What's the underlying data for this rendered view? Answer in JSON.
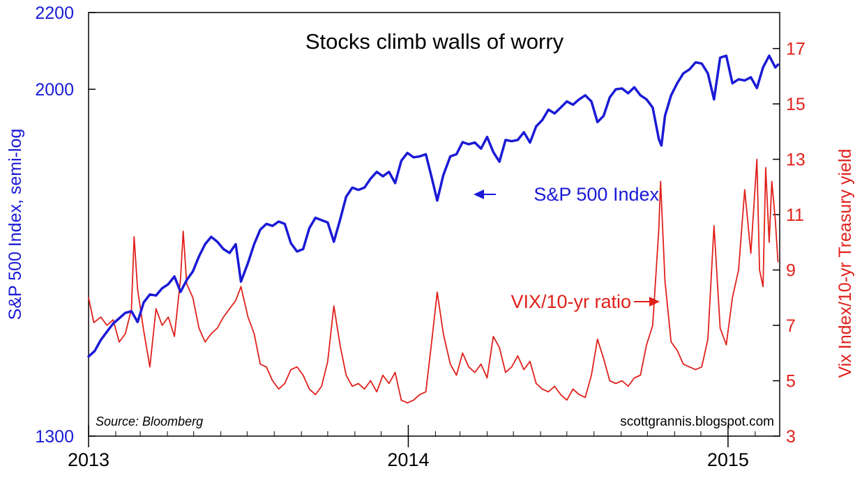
{
  "chart_data": {
    "type": "line",
    "title": "Stocks climb walls of worry",
    "source": "Source: Bloomberg",
    "credit": "scottgrannis.blogspot.com",
    "x_ticks": [
      "2013",
      "2014",
      "2015"
    ],
    "xlim": [
      "2013-01-01",
      "2015-03-01"
    ],
    "left_axis": {
      "label": "S&P 500 Index, semi-log",
      "scale": "log",
      "ylim": [
        1300,
        2200
      ],
      "ticks": [
        "2200",
        "2000",
        "1300"
      ]
    },
    "right_axis": {
      "label": "Vix Index/10-yr Treasury yield",
      "scale": "linear",
      "ylim": [
        3,
        18.3
      ],
      "ticks": [
        "17",
        "15",
        "13",
        "11",
        "9",
        "7",
        "5",
        "3"
      ]
    },
    "annotations": {
      "sp500": "S&P 500 Index",
      "vix": "VIX/10-yr ratio"
    },
    "grid": false,
    "colors": {
      "sp500": "#1a1ad6",
      "vix": "#e0201b"
    },
    "series": [
      {
        "name": "S&P 500 Index",
        "axis": "left",
        "color": "#1a1ad6",
        "points": [
          [
            "2013-01-01",
            1435
          ],
          [
            "2013-01-08",
            1445
          ],
          [
            "2013-01-15",
            1465
          ],
          [
            "2013-01-22",
            1480
          ],
          [
            "2013-01-29",
            1495
          ],
          [
            "2013-02-05",
            1505
          ],
          [
            "2013-02-12",
            1515
          ],
          [
            "2013-02-19",
            1518
          ],
          [
            "2013-02-26",
            1498
          ],
          [
            "2013-03-05",
            1535
          ],
          [
            "2013-03-12",
            1550
          ],
          [
            "2013-03-19",
            1548
          ],
          [
            "2013-03-26",
            1562
          ],
          [
            "2013-04-02",
            1570
          ],
          [
            "2013-04-09",
            1585
          ],
          [
            "2013-04-16",
            1555
          ],
          [
            "2013-04-23",
            1578
          ],
          [
            "2013-04-30",
            1595
          ],
          [
            "2013-05-07",
            1625
          ],
          [
            "2013-05-14",
            1650
          ],
          [
            "2013-05-21",
            1665
          ],
          [
            "2013-05-28",
            1655
          ],
          [
            "2013-06-04",
            1640
          ],
          [
            "2013-06-11",
            1632
          ],
          [
            "2013-06-18",
            1650
          ],
          [
            "2013-06-24",
            1575
          ],
          [
            "2013-07-02",
            1612
          ],
          [
            "2013-07-09",
            1650
          ],
          [
            "2013-07-16",
            1680
          ],
          [
            "2013-07-23",
            1692
          ],
          [
            "2013-07-30",
            1688
          ],
          [
            "2013-08-06",
            1697
          ],
          [
            "2013-08-13",
            1692
          ],
          [
            "2013-08-20",
            1652
          ],
          [
            "2013-08-27",
            1635
          ],
          [
            "2013-09-03",
            1640
          ],
          [
            "2013-09-10",
            1683
          ],
          [
            "2013-09-17",
            1705
          ],
          [
            "2013-09-24",
            1700
          ],
          [
            "2013-10-01",
            1695
          ],
          [
            "2013-10-08",
            1655
          ],
          [
            "2013-10-15",
            1700
          ],
          [
            "2013-10-22",
            1750
          ],
          [
            "2013-10-29",
            1770
          ],
          [
            "2013-11-05",
            1765
          ],
          [
            "2013-11-12",
            1770
          ],
          [
            "2013-11-19",
            1790
          ],
          [
            "2013-11-26",
            1805
          ],
          [
            "2013-12-03",
            1795
          ],
          [
            "2013-12-10",
            1805
          ],
          [
            "2013-12-17",
            1780
          ],
          [
            "2013-12-24",
            1830
          ],
          [
            "2013-12-31",
            1848
          ],
          [
            "2014-01-07",
            1838
          ],
          [
            "2014-01-14",
            1840
          ],
          [
            "2014-01-21",
            1845
          ],
          [
            "2014-01-28",
            1790
          ],
          [
            "2014-02-03",
            1742
          ],
          [
            "2014-02-10",
            1798
          ],
          [
            "2014-02-18",
            1840
          ],
          [
            "2014-02-25",
            1845
          ],
          [
            "2014-03-04",
            1873
          ],
          [
            "2014-03-11",
            1868
          ],
          [
            "2014-03-18",
            1872
          ],
          [
            "2014-03-25",
            1858
          ],
          [
            "2014-04-01",
            1885
          ],
          [
            "2014-04-08",
            1850
          ],
          [
            "2014-04-15",
            1828
          ],
          [
            "2014-04-22",
            1878
          ],
          [
            "2014-04-29",
            1875
          ],
          [
            "2014-05-06",
            1878
          ],
          [
            "2014-05-13",
            1896
          ],
          [
            "2014-05-20",
            1872
          ],
          [
            "2014-05-27",
            1910
          ],
          [
            "2014-06-03",
            1925
          ],
          [
            "2014-06-10",
            1950
          ],
          [
            "2014-06-17",
            1941
          ],
          [
            "2014-06-24",
            1955
          ],
          [
            "2014-07-01",
            1970
          ],
          [
            "2014-07-08",
            1962
          ],
          [
            "2014-07-15",
            1975
          ],
          [
            "2014-07-22",
            1985
          ],
          [
            "2014-07-29",
            1970
          ],
          [
            "2014-08-05",
            1920
          ],
          [
            "2014-08-12",
            1935
          ],
          [
            "2014-08-19",
            1980
          ],
          [
            "2014-08-26",
            2000
          ],
          [
            "2014-09-02",
            2002
          ],
          [
            "2014-09-09",
            1990
          ],
          [
            "2014-09-16",
            2005
          ],
          [
            "2014-09-23",
            1985
          ],
          [
            "2014-09-30",
            1975
          ],
          [
            "2014-10-07",
            1955
          ],
          [
            "2014-10-14",
            1880
          ],
          [
            "2014-10-17",
            1865
          ],
          [
            "2014-10-21",
            1935
          ],
          [
            "2014-10-28",
            1985
          ],
          [
            "2014-11-04",
            2015
          ],
          [
            "2014-11-11",
            2040
          ],
          [
            "2014-11-18",
            2050
          ],
          [
            "2014-11-25",
            2068
          ],
          [
            "2014-12-02",
            2065
          ],
          [
            "2014-12-09",
            2040
          ],
          [
            "2014-12-16",
            1975
          ],
          [
            "2014-12-23",
            2080
          ],
          [
            "2014-12-30",
            2085
          ],
          [
            "2015-01-06",
            2015
          ],
          [
            "2015-01-13",
            2025
          ],
          [
            "2015-01-20",
            2022
          ],
          [
            "2015-01-27",
            2030
          ],
          [
            "2015-02-03",
            2003
          ],
          [
            "2015-02-10",
            2055
          ],
          [
            "2015-02-17",
            2085
          ],
          [
            "2015-02-24",
            2055
          ],
          [
            "2015-02-27",
            2062
          ]
        ]
      },
      {
        "name": "VIX/10-yr ratio",
        "axis": "right",
        "color": "#e0201b",
        "points": [
          [
            "2013-01-01",
            8.0
          ],
          [
            "2013-01-07",
            7.1
          ],
          [
            "2013-01-15",
            7.3
          ],
          [
            "2013-01-22",
            7.0
          ],
          [
            "2013-01-29",
            7.2
          ],
          [
            "2013-02-05",
            6.4
          ],
          [
            "2013-02-12",
            6.7
          ],
          [
            "2013-02-19",
            7.6
          ],
          [
            "2013-02-22",
            10.2
          ],
          [
            "2013-02-26",
            8.3
          ],
          [
            "2013-03-05",
            6.8
          ],
          [
            "2013-03-12",
            5.5
          ],
          [
            "2013-03-19",
            7.6
          ],
          [
            "2013-03-26",
            7.0
          ],
          [
            "2013-04-02",
            7.3
          ],
          [
            "2013-04-09",
            6.6
          ],
          [
            "2013-04-16",
            8.7
          ],
          [
            "2013-04-19",
            10.4
          ],
          [
            "2013-04-23",
            8.5
          ],
          [
            "2013-04-30",
            8.0
          ],
          [
            "2013-05-07",
            6.9
          ],
          [
            "2013-05-14",
            6.4
          ],
          [
            "2013-05-21",
            6.7
          ],
          [
            "2013-05-28",
            6.9
          ],
          [
            "2013-06-04",
            7.3
          ],
          [
            "2013-06-11",
            7.6
          ],
          [
            "2013-06-18",
            7.9
          ],
          [
            "2013-06-24",
            8.4
          ],
          [
            "2013-07-02",
            7.3
          ],
          [
            "2013-07-09",
            6.7
          ],
          [
            "2013-07-16",
            5.6
          ],
          [
            "2013-07-23",
            5.5
          ],
          [
            "2013-07-30",
            5.0
          ],
          [
            "2013-08-06",
            4.7
          ],
          [
            "2013-08-13",
            4.9
          ],
          [
            "2013-08-20",
            5.4
          ],
          [
            "2013-08-27",
            5.5
          ],
          [
            "2013-09-03",
            5.2
          ],
          [
            "2013-09-10",
            4.7
          ],
          [
            "2013-09-17",
            4.5
          ],
          [
            "2013-09-24",
            4.8
          ],
          [
            "2013-10-01",
            5.7
          ],
          [
            "2013-10-08",
            7.7
          ],
          [
            "2013-10-15",
            6.3
          ],
          [
            "2013-10-22",
            5.2
          ],
          [
            "2013-10-29",
            4.8
          ],
          [
            "2013-11-05",
            4.9
          ],
          [
            "2013-11-12",
            4.7
          ],
          [
            "2013-11-19",
            5.0
          ],
          [
            "2013-11-26",
            4.6
          ],
          [
            "2013-12-03",
            5.2
          ],
          [
            "2013-12-10",
            4.9
          ],
          [
            "2013-12-17",
            5.3
          ],
          [
            "2013-12-24",
            4.3
          ],
          [
            "2013-12-31",
            4.2
          ],
          [
            "2014-01-07",
            4.3
          ],
          [
            "2014-01-14",
            4.5
          ],
          [
            "2014-01-21",
            4.6
          ],
          [
            "2014-01-28",
            6.5
          ],
          [
            "2014-02-03",
            8.2
          ],
          [
            "2014-02-10",
            6.7
          ],
          [
            "2014-02-18",
            5.6
          ],
          [
            "2014-02-25",
            5.2
          ],
          [
            "2014-03-04",
            6.0
          ],
          [
            "2014-03-11",
            5.5
          ],
          [
            "2014-03-18",
            5.3
          ],
          [
            "2014-03-25",
            5.6
          ],
          [
            "2014-04-01",
            5.1
          ],
          [
            "2014-04-08",
            6.6
          ],
          [
            "2014-04-15",
            6.2
          ],
          [
            "2014-04-22",
            5.3
          ],
          [
            "2014-04-29",
            5.5
          ],
          [
            "2014-05-06",
            5.9
          ],
          [
            "2014-05-13",
            5.4
          ],
          [
            "2014-05-20",
            5.7
          ],
          [
            "2014-05-27",
            4.9
          ],
          [
            "2014-06-03",
            4.7
          ],
          [
            "2014-06-10",
            4.6
          ],
          [
            "2014-06-17",
            4.8
          ],
          [
            "2014-06-24",
            4.5
          ],
          [
            "2014-07-01",
            4.3
          ],
          [
            "2014-07-08",
            4.7
          ],
          [
            "2014-07-15",
            4.5
          ],
          [
            "2014-07-22",
            4.4
          ],
          [
            "2014-07-29",
            5.2
          ],
          [
            "2014-08-05",
            6.5
          ],
          [
            "2014-08-12",
            5.8
          ],
          [
            "2014-08-19",
            5.0
          ],
          [
            "2014-08-26",
            4.9
          ],
          [
            "2014-09-02",
            5.0
          ],
          [
            "2014-09-09",
            4.8
          ],
          [
            "2014-09-16",
            5.1
          ],
          [
            "2014-09-23",
            5.2
          ],
          [
            "2014-09-30",
            6.3
          ],
          [
            "2014-10-07",
            7.0
          ],
          [
            "2014-10-14",
            10.5
          ],
          [
            "2014-10-16",
            12.2
          ],
          [
            "2014-10-21",
            8.6
          ],
          [
            "2014-10-28",
            6.4
          ],
          [
            "2014-11-04",
            6.1
          ],
          [
            "2014-11-11",
            5.6
          ],
          [
            "2014-11-18",
            5.5
          ],
          [
            "2014-11-25",
            5.4
          ],
          [
            "2014-12-02",
            5.5
          ],
          [
            "2014-12-09",
            6.5
          ],
          [
            "2014-12-16",
            10.6
          ],
          [
            "2014-12-23",
            6.9
          ],
          [
            "2014-12-30",
            6.3
          ],
          [
            "2015-01-06",
            8.0
          ],
          [
            "2015-01-13",
            9.0
          ],
          [
            "2015-01-20",
            11.9
          ],
          [
            "2015-01-27",
            9.6
          ],
          [
            "2015-02-03",
            13.0
          ],
          [
            "2015-02-06",
            9.0
          ],
          [
            "2015-02-10",
            8.4
          ],
          [
            "2015-02-13",
            12.7
          ],
          [
            "2015-02-17",
            10.0
          ],
          [
            "2015-02-20",
            12.2
          ],
          [
            "2015-02-24",
            10.8
          ],
          [
            "2015-02-27",
            9.3
          ]
        ]
      }
    ]
  }
}
